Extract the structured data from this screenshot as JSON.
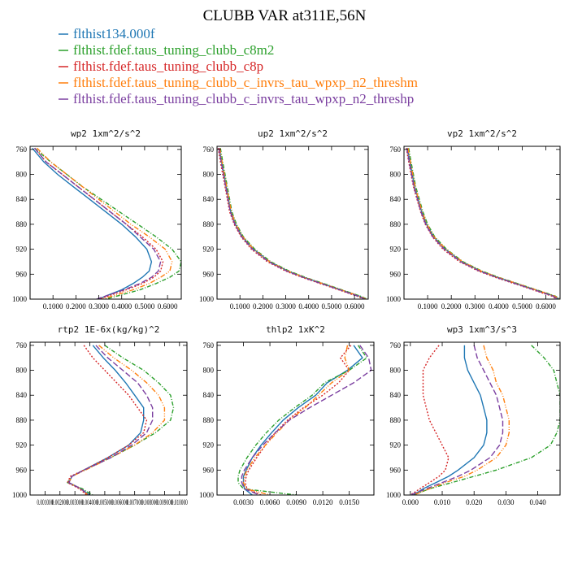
{
  "figure": {
    "title": "CLUBB VAR at311E,56N",
    "legend": [
      {
        "label": "flthist134.000f",
        "color": "#1f77b4"
      },
      {
        "label": "flthist.fdef.taus_tuning_clubb_c8m2",
        "color": "#2ca02c"
      },
      {
        "label": "flthist.fdef.taus_tuning_clubb_c8p",
        "color": "#d62728"
      },
      {
        "label": "flthist.fdef.taus_tuning_clubb_c_invrs_tau_wpxp_n2_threshm",
        "color": "#ff7f0e"
      },
      {
        "label": "flthist.fdef.taus_tuning_clubb_c_invrs_tau_wpxp_n2_threshp",
        "color": "#7b3fa0"
      }
    ]
  },
  "chart_data": [
    {
      "type": "line",
      "title": "wp2   1xm^2/s^2",
      "xlim": [
        0.0,
        0.66
      ],
      "ylim": [
        1000,
        755
      ],
      "xticks": [
        0.1,
        0.2,
        0.3,
        0.4,
        0.5,
        0.6
      ],
      "xtick_labels": [
        "0.1000",
        "0.2000",
        "0.3000",
        "0.4000",
        "0.5000",
        "0.6000"
      ],
      "yticks": [
        760,
        800,
        840,
        880,
        920,
        960,
        1000
      ],
      "ytick_labels": [
        "760",
        "800",
        "840",
        "880",
        "920",
        "960",
        "1000"
      ],
      "y": [
        758,
        780,
        800,
        820,
        840,
        860,
        880,
        900,
        920,
        940,
        955,
        965,
        975,
        985,
        995,
        1000
      ],
      "series": [
        {
          "values": [
            0.01,
            0.06,
            0.12,
            0.19,
            0.26,
            0.33,
            0.4,
            0.46,
            0.51,
            0.53,
            0.52,
            0.49,
            0.45,
            0.4,
            0.33,
            0.3
          ]
        },
        {
          "values": [
            0.02,
            0.09,
            0.16,
            0.23,
            0.31,
            0.39,
            0.47,
            0.55,
            0.62,
            0.66,
            0.65,
            0.61,
            0.55,
            0.48,
            0.38,
            0.33
          ]
        },
        {
          "values": [
            0.02,
            0.07,
            0.14,
            0.21,
            0.28,
            0.35,
            0.42,
            0.49,
            0.55,
            0.58,
            0.57,
            0.54,
            0.49,
            0.42,
            0.34,
            0.3
          ]
        },
        {
          "values": [
            0.03,
            0.09,
            0.16,
            0.23,
            0.3,
            0.37,
            0.44,
            0.52,
            0.59,
            0.62,
            0.61,
            0.57,
            0.52,
            0.45,
            0.36,
            0.31
          ]
        },
        {
          "values": [
            0.02,
            0.07,
            0.14,
            0.21,
            0.28,
            0.35,
            0.42,
            0.48,
            0.54,
            0.57,
            0.56,
            0.53,
            0.48,
            0.41,
            0.33,
            0.29
          ]
        }
      ]
    },
    {
      "type": "line",
      "title": "up2   1xm^2/s^2",
      "xlim": [
        0.0,
        0.66
      ],
      "ylim": [
        1000,
        755
      ],
      "xticks": [
        0.1,
        0.2,
        0.3,
        0.4,
        0.5,
        0.6
      ],
      "xtick_labels": [
        "0.1000",
        "0.2000",
        "0.3000",
        "0.4000",
        "0.5000",
        "0.6000"
      ],
      "yticks": [
        760,
        800,
        840,
        880,
        920,
        960,
        1000
      ],
      "ytick_labels": [
        "760",
        "800",
        "840",
        "880",
        "920",
        "960",
        "1000"
      ],
      "y": [
        758,
        780,
        800,
        820,
        840,
        860,
        880,
        900,
        920,
        940,
        955,
        965,
        975,
        985,
        995,
        1000
      ],
      "series": [
        {
          "values": [
            0.01,
            0.02,
            0.03,
            0.04,
            0.05,
            0.06,
            0.08,
            0.11,
            0.16,
            0.23,
            0.31,
            0.38,
            0.46,
            0.54,
            0.62,
            0.65
          ]
        },
        {
          "values": [
            0.015,
            0.025,
            0.035,
            0.045,
            0.055,
            0.065,
            0.085,
            0.115,
            0.165,
            0.235,
            0.315,
            0.385,
            0.465,
            0.545,
            0.625,
            0.655
          ]
        },
        {
          "values": [
            0.005,
            0.015,
            0.025,
            0.035,
            0.045,
            0.055,
            0.075,
            0.105,
            0.15,
            0.22,
            0.3,
            0.37,
            0.45,
            0.53,
            0.61,
            0.64
          ]
        },
        {
          "values": [
            0.012,
            0.022,
            0.032,
            0.042,
            0.052,
            0.062,
            0.082,
            0.112,
            0.16,
            0.23,
            0.31,
            0.38,
            0.46,
            0.54,
            0.62,
            0.65
          ]
        },
        {
          "values": [
            0.008,
            0.018,
            0.028,
            0.038,
            0.048,
            0.058,
            0.078,
            0.108,
            0.155,
            0.225,
            0.305,
            0.375,
            0.455,
            0.535,
            0.615,
            0.645
          ]
        }
      ]
    },
    {
      "type": "line",
      "title": "vp2   1xm^2/s^2",
      "xlim": [
        0.0,
        0.66
      ],
      "ylim": [
        1000,
        755
      ],
      "xticks": [
        0.1,
        0.2,
        0.3,
        0.4,
        0.5,
        0.6
      ],
      "xtick_labels": [
        "0.1000",
        "0.2000",
        "0.3000",
        "0.4000",
        "0.5000",
        "0.6000"
      ],
      "yticks": [
        760,
        800,
        840,
        880,
        920,
        960,
        1000
      ],
      "ytick_labels": [
        "760",
        "800",
        "840",
        "880",
        "920",
        "960",
        "1000"
      ],
      "y": [
        758,
        780,
        800,
        820,
        840,
        860,
        880,
        900,
        920,
        940,
        955,
        965,
        975,
        985,
        995,
        1000
      ],
      "series": [
        {
          "values": [
            0.015,
            0.025,
            0.035,
            0.045,
            0.06,
            0.075,
            0.095,
            0.125,
            0.175,
            0.245,
            0.325,
            0.395,
            0.475,
            0.555,
            0.635,
            0.655
          ]
        },
        {
          "values": [
            0.02,
            0.03,
            0.04,
            0.05,
            0.065,
            0.08,
            0.1,
            0.13,
            0.18,
            0.25,
            0.33,
            0.4,
            0.48,
            0.56,
            0.64,
            0.66
          ]
        },
        {
          "values": [
            0.01,
            0.02,
            0.03,
            0.04,
            0.055,
            0.07,
            0.09,
            0.12,
            0.165,
            0.235,
            0.315,
            0.385,
            0.465,
            0.545,
            0.625,
            0.645
          ]
        },
        {
          "values": [
            0.017,
            0.027,
            0.037,
            0.047,
            0.062,
            0.077,
            0.097,
            0.127,
            0.177,
            0.247,
            0.327,
            0.397,
            0.477,
            0.557,
            0.637,
            0.657
          ]
        },
        {
          "values": [
            0.012,
            0.022,
            0.032,
            0.042,
            0.057,
            0.072,
            0.092,
            0.122,
            0.17,
            0.24,
            0.32,
            0.39,
            0.47,
            0.55,
            0.63,
            0.65
          ]
        }
      ]
    },
    {
      "type": "line",
      "title": "rtp2   1E-6x(kg/kg)^2",
      "xlim": [
        0.0,
        10.5
      ],
      "ylim": [
        1000,
        755
      ],
      "xticks": [
        1,
        2,
        3,
        4,
        5,
        6,
        7,
        8,
        9,
        10
      ],
      "xtick_labels": [
        "0.001000",
        "0.002000",
        "0.003000",
        "0.004000",
        "0.005000",
        "0.006000",
        "0.007000",
        "0.008000",
        "0.009000",
        "0.010000"
      ],
      "yticks": [
        760,
        800,
        840,
        880,
        920,
        960,
        1000
      ],
      "ytick_labels": [
        "760",
        "800",
        "840",
        "880",
        "920",
        "960",
        "1000"
      ],
      "y": [
        760,
        780,
        800,
        820,
        840,
        860,
        880,
        900,
        920,
        940,
        960,
        970,
        980,
        990,
        1000
      ],
      "series": [
        {
          "values": [
            4.2,
            4.9,
            5.7,
            6.4,
            7.0,
            7.6,
            7.6,
            7.4,
            6.6,
            5.2,
            3.6,
            2.8,
            2.6,
            3.4,
            4.0
          ]
        },
        {
          "values": [
            5.0,
            6.2,
            7.6,
            8.6,
            9.4,
            9.6,
            9.4,
            8.4,
            7.0,
            5.4,
            3.6,
            2.8,
            2.5,
            3.5,
            4.2
          ]
        },
        {
          "values": [
            3.6,
            4.2,
            5.0,
            5.8,
            6.6,
            7.2,
            7.8,
            7.6,
            6.6,
            5.2,
            3.6,
            2.7,
            2.5,
            3.3,
            3.8
          ]
        },
        {
          "values": [
            4.6,
            5.6,
            6.8,
            7.8,
            8.6,
            9.0,
            9.0,
            8.2,
            7.0,
            5.4,
            3.7,
            2.8,
            2.6,
            3.4,
            3.9
          ]
        },
        {
          "values": [
            4.4,
            5.2,
            6.2,
            7.2,
            7.8,
            8.2,
            8.2,
            7.8,
            6.8,
            5.4,
            3.6,
            2.8,
            2.6,
            3.4,
            3.9
          ]
        }
      ]
    },
    {
      "type": "line",
      "title": "thlp2   1xK^2",
      "xlim": [
        0.0,
        0.0178
      ],
      "ylim": [
        1000,
        755
      ],
      "xticks": [
        0.003,
        0.006,
        0.009,
        0.012,
        0.015
      ],
      "xtick_labels": [
        "0.0030",
        "0.0060",
        "0.0090",
        "0.0120",
        "0.0150"
      ],
      "yticks": [
        760,
        800,
        840,
        880,
        920,
        960,
        1000
      ],
      "ytick_labels": [
        "760",
        "800",
        "840",
        "880",
        "920",
        "960",
        "1000"
      ],
      "y": [
        760,
        780,
        800,
        820,
        840,
        860,
        880,
        900,
        920,
        940,
        960,
        970,
        980,
        990,
        1000
      ],
      "series": [
        {
          "values": [
            0.0155,
            0.0165,
            0.0148,
            0.0125,
            0.0112,
            0.0092,
            0.0075,
            0.0062,
            0.005,
            0.004,
            0.0033,
            0.003,
            0.003,
            0.0031,
            0.004
          ]
        },
        {
          "values": [
            0.016,
            0.017,
            0.015,
            0.0122,
            0.0108,
            0.0088,
            0.007,
            0.0056,
            0.0044,
            0.0034,
            0.0026,
            0.0024,
            0.0024,
            0.003,
            0.009
          ]
        },
        {
          "values": [
            0.0152,
            0.014,
            0.015,
            0.0138,
            0.012,
            0.0098,
            0.008,
            0.0066,
            0.0055,
            0.0045,
            0.0036,
            0.0033,
            0.0032,
            0.0034,
            0.005
          ]
        },
        {
          "values": [
            0.0148,
            0.0145,
            0.015,
            0.013,
            0.0115,
            0.01,
            0.0082,
            0.0068,
            0.0055,
            0.0043,
            0.0034,
            0.0031,
            0.003,
            0.0033,
            0.006
          ]
        },
        {
          "values": [
            0.0162,
            0.0172,
            0.0175,
            0.0155,
            0.013,
            0.0105,
            0.0082,
            0.0066,
            0.0052,
            0.004,
            0.0031,
            0.0028,
            0.0028,
            0.0031,
            0.0048
          ]
        }
      ]
    },
    {
      "type": "line",
      "title": "wp3   1xm^3/s^3",
      "xlim": [
        -0.002,
        0.047
      ],
      "ylim": [
        1000,
        755
      ],
      "xticks": [
        0.0,
        0.01,
        0.02,
        0.03,
        0.04
      ],
      "xtick_labels": [
        "0.000",
        "0.010",
        "0.020",
        "0.030",
        "0.040"
      ],
      "yticks": [
        760,
        800,
        840,
        880,
        920,
        960,
        1000
      ],
      "ytick_labels": [
        "760",
        "800",
        "840",
        "880",
        "920",
        "960",
        "1000"
      ],
      "y": [
        760,
        780,
        800,
        820,
        840,
        860,
        880,
        900,
        920,
        940,
        960,
        970,
        980,
        990,
        1000
      ],
      "series": [
        {
          "values": [
            0.017,
            0.017,
            0.018,
            0.02,
            0.022,
            0.023,
            0.024,
            0.024,
            0.023,
            0.02,
            0.015,
            0.012,
            0.008,
            0.004,
            0.001
          ]
        },
        {
          "values": [
            0.038,
            0.042,
            0.045,
            0.046,
            0.047,
            0.047,
            0.047,
            0.046,
            0.044,
            0.038,
            0.027,
            0.02,
            0.013,
            0.006,
            0.001
          ]
        },
        {
          "values": [
            0.009,
            0.006,
            0.004,
            0.004,
            0.004,
            0.005,
            0.006,
            0.008,
            0.01,
            0.012,
            0.011,
            0.009,
            0.006,
            0.003,
            0.0
          ]
        },
        {
          "values": [
            0.023,
            0.024,
            0.026,
            0.027,
            0.029,
            0.03,
            0.031,
            0.031,
            0.03,
            0.027,
            0.021,
            0.017,
            0.011,
            0.006,
            0.001
          ]
        },
        {
          "values": [
            0.02,
            0.021,
            0.023,
            0.025,
            0.027,
            0.028,
            0.029,
            0.029,
            0.028,
            0.025,
            0.019,
            0.015,
            0.01,
            0.005,
            0.0
          ]
        }
      ]
    }
  ]
}
